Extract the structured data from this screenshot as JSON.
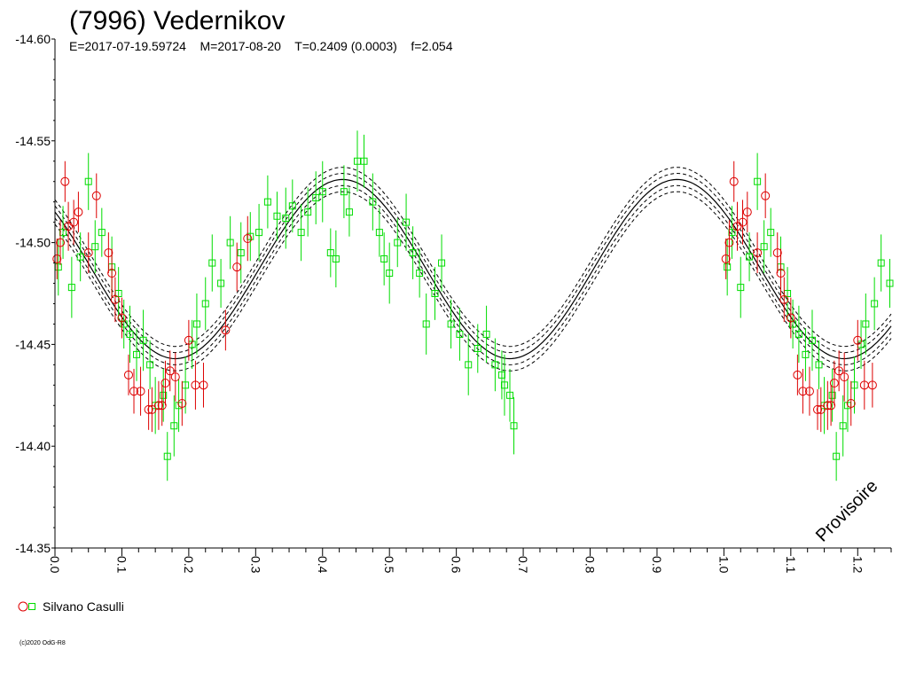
{
  "chart_data": {
    "type": "scatter",
    "title": "(7996) Vedernikov",
    "subtitle": "E=2017-07-19.59724    M=2017-08-20    T=0.2409 (0.0003)    f=2.054",
    "xlabel": "",
    "ylabel": "",
    "xlim": [
      0.0,
      1.25
    ],
    "ylim": [
      -14.35,
      -14.6
    ],
    "y_inverted": true,
    "x_ticks": [
      "0.0",
      "0.1",
      "0.2",
      "0.3",
      "0.4",
      "0.5",
      "0.6",
      "0.7",
      "0.8",
      "0.9",
      "1.0",
      "1.1",
      "1.2"
    ],
    "y_ticks": [
      "-14.60",
      "-14.55",
      "-14.50",
      "-14.45",
      "-14.40",
      "-14.35"
    ],
    "grid": false,
    "legend_placement": "bottom-left",
    "watermark": "Provisoire",
    "fit_model": {
      "mean": -14.487,
      "amplitude": 0.044,
      "phase_of_max": 0.43,
      "band_offsets": [
        0.003,
        0.006
      ]
    },
    "series": [
      {
        "marker": "circle",
        "color": "#dd0000",
        "x": [
          0.003,
          0.008,
          0.015,
          0.02,
          0.028,
          0.035,
          0.05,
          0.062,
          0.08,
          0.085,
          0.09,
          0.1,
          0.11,
          0.118,
          0.128,
          0.14,
          0.145,
          0.155,
          0.16,
          0.165,
          0.172,
          0.18,
          0.19,
          0.2,
          0.21,
          0.222,
          0.255,
          0.272,
          0.288
        ],
        "y": [
          -14.492,
          -14.5,
          -14.53,
          -14.508,
          -14.51,
          -14.515,
          -14.495,
          -14.523,
          -14.495,
          -14.485,
          -14.472,
          -14.463,
          -14.435,
          -14.427,
          -14.427,
          -14.418,
          -14.418,
          -14.42,
          -14.42,
          -14.431,
          -14.437,
          -14.434,
          -14.421,
          -14.452,
          -14.43,
          -14.43,
          -14.457,
          -14.488,
          -14.502
        ],
        "err": [
          0.01,
          0.011,
          0.01,
          0.012,
          0.011,
          0.01,
          0.01,
          0.011,
          0.01,
          0.012,
          0.011,
          0.01,
          0.01,
          0.011,
          0.012,
          0.01,
          0.011,
          0.012,
          0.01,
          0.011,
          0.01,
          0.012,
          0.011,
          0.01,
          0.012,
          0.011,
          0.01,
          0.012,
          0.011
        ]
      },
      {
        "marker": "square",
        "color": "#00dd00",
        "x": [
          0.005,
          0.012,
          0.025,
          0.038,
          0.05,
          0.06,
          0.07,
          0.085,
          0.095,
          0.103,
          0.112,
          0.122,
          0.132,
          0.142,
          0.15,
          0.162,
          0.168,
          0.178,
          0.185,
          0.195,
          0.205,
          0.212,
          0.225,
          0.235,
          0.248,
          0.262,
          0.278,
          0.292,
          0.305,
          0.318,
          0.332,
          0.345,
          0.355,
          0.368,
          0.378,
          0.39,
          0.4,
          0.412,
          0.42,
          0.432,
          0.44,
          0.452,
          0.462,
          0.475,
          0.485,
          0.492,
          0.5,
          0.512,
          0.525,
          0.535,
          0.545,
          0.555,
          0.568,
          0.578,
          0.592,
          0.605,
          0.618,
          0.632,
          0.645,
          0.658,
          0.668,
          0.672,
          0.68,
          0.686
        ],
        "y": [
          -14.488,
          -14.505,
          -14.478,
          -14.493,
          -14.53,
          -14.498,
          -14.505,
          -14.488,
          -14.475,
          -14.46,
          -14.455,
          -14.445,
          -14.452,
          -14.44,
          -14.42,
          -14.425,
          -14.395,
          -14.41,
          -14.42,
          -14.43,
          -14.45,
          -14.46,
          -14.47,
          -14.49,
          -14.48,
          -14.5,
          -14.495,
          -14.503,
          -14.505,
          -14.52,
          -14.513,
          -14.512,
          -14.518,
          -14.505,
          -14.515,
          -14.522,
          -14.525,
          -14.495,
          -14.492,
          -14.525,
          -14.515,
          -14.54,
          -14.54,
          -14.52,
          -14.505,
          -14.492,
          -14.485,
          -14.5,
          -14.51,
          -14.495,
          -14.485,
          -14.46,
          -14.475,
          -14.49,
          -14.46,
          -14.455,
          -14.44,
          -14.448,
          -14.455,
          -14.44,
          -14.435,
          -14.43,
          -14.425,
          -14.41
        ],
        "err": [
          0.014,
          0.013,
          0.015,
          0.012,
          0.014,
          0.013,
          0.012,
          0.015,
          0.013,
          0.012,
          0.014,
          0.013,
          0.015,
          0.012,
          0.014,
          0.013,
          0.012,
          0.015,
          0.013,
          0.014,
          0.012,
          0.015,
          0.013,
          0.014,
          0.012,
          0.013,
          0.015,
          0.012,
          0.014,
          0.013,
          0.012,
          0.015,
          0.013,
          0.014,
          0.012,
          0.013,
          0.015,
          0.012,
          0.014,
          0.013,
          0.012,
          0.015,
          0.013,
          0.014,
          0.012,
          0.013,
          0.015,
          0.012,
          0.014,
          0.013,
          0.012,
          0.015,
          0.013,
          0.014,
          0.012,
          0.013,
          0.015,
          0.012,
          0.014,
          0.013,
          0.012,
          0.015,
          0.013,
          0.014
        ]
      }
    ]
  },
  "legend": {
    "label": "Silvano Casulli"
  },
  "copyright": "(c)2020 OdG-R8"
}
